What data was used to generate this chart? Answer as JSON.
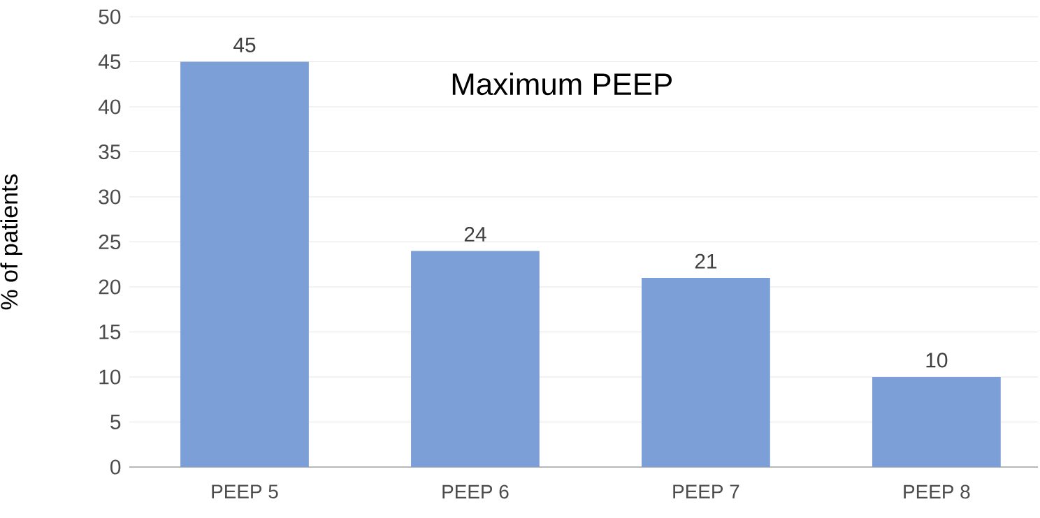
{
  "chart_data": {
    "type": "bar",
    "title": "Maximum PEEP",
    "ylabel": "% of patients",
    "categories": [
      "PEEP 5",
      "PEEP 6",
      "PEEP 7",
      "PEEP 8"
    ],
    "values": [
      45,
      24,
      21,
      10
    ],
    "color": "#7b9fd6",
    "ylim": [
      0,
      50
    ],
    "yticks": [
      0,
      5,
      10,
      15,
      20,
      25,
      30,
      35,
      40,
      45,
      50
    ],
    "grid": "y",
    "data_labels": true
  }
}
